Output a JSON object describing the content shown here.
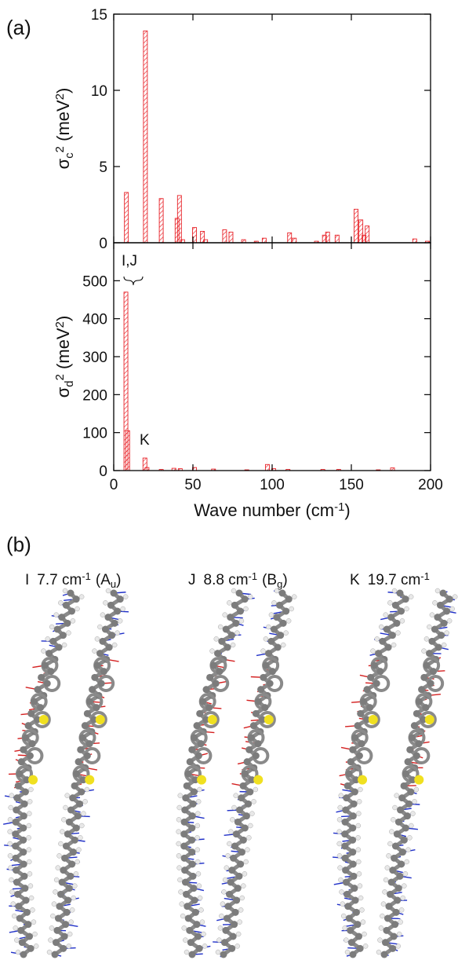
{
  "figure": {
    "panel_a_label": "(a)",
    "panel_b_label": "(b)"
  },
  "chart_data": [
    {
      "type": "bar",
      "color": "#e8242a",
      "y_label": [
        "σ",
        "c",
        "2",
        " (meV",
        "2",
        ")"
      ],
      "x": [
        8,
        20,
        30,
        40,
        41.5,
        43.5,
        51,
        56,
        58,
        70,
        74,
        82,
        90,
        95,
        111,
        114,
        128,
        133,
        135,
        141,
        153,
        156,
        158,
        160,
        190,
        198
      ],
      "values": [
        3.3,
        13.9,
        2.9,
        1.6,
        3.1,
        0.2,
        1.0,
        0.75,
        0.2,
        0.85,
        0.7,
        0.2,
        0.1,
        0.3,
        0.65,
        0.3,
        0.1,
        0.5,
        0.7,
        0.5,
        2.2,
        1.5,
        0.5,
        1.1,
        0.25,
        0.1
      ],
      "xlim": [
        0,
        200
      ],
      "xticks": [
        0,
        50,
        100,
        150,
        200
      ],
      "ylim": [
        0,
        15
      ],
      "yticks": [
        0,
        5,
        10,
        15
      ]
    },
    {
      "type": "bar",
      "color": "#e8242a",
      "y_label": [
        "σ",
        "d",
        "2",
        " (meV",
        "2",
        ")"
      ],
      "x_label": [
        "Wave number (cm",
        "-1",
        ")"
      ],
      "x": [
        7.7,
        8.8,
        19.7,
        21,
        30,
        38,
        42,
        51,
        63,
        84,
        97,
        101,
        110,
        132,
        142,
        167,
        176
      ],
      "values": [
        470,
        105,
        33,
        8,
        3,
        6,
        5,
        8,
        4,
        2,
        16,
        5,
        3,
        3,
        3,
        2,
        7
      ],
      "xlim": [
        0,
        200
      ],
      "xticks": [
        0,
        50,
        100,
        150,
        200
      ],
      "ylim": [
        0,
        600
      ],
      "yticks": [
        0,
        100,
        200,
        300,
        400,
        500
      ],
      "annotations": [
        "I,J",
        "K"
      ]
    }
  ],
  "modes": [
    {
      "name": "I",
      "frequency": "7.7 cm",
      "exponent": "-1",
      "symmetry": "(A",
      "symmetry_sub": "u",
      "close": ")"
    },
    {
      "name": "J",
      "frequency": "8.8 cm",
      "exponent": "-1",
      "symmetry": "(B",
      "symmetry_sub": "g",
      "close": ")"
    },
    {
      "name": "K",
      "frequency": "19.7 cm",
      "exponent": "-1"
    }
  ]
}
